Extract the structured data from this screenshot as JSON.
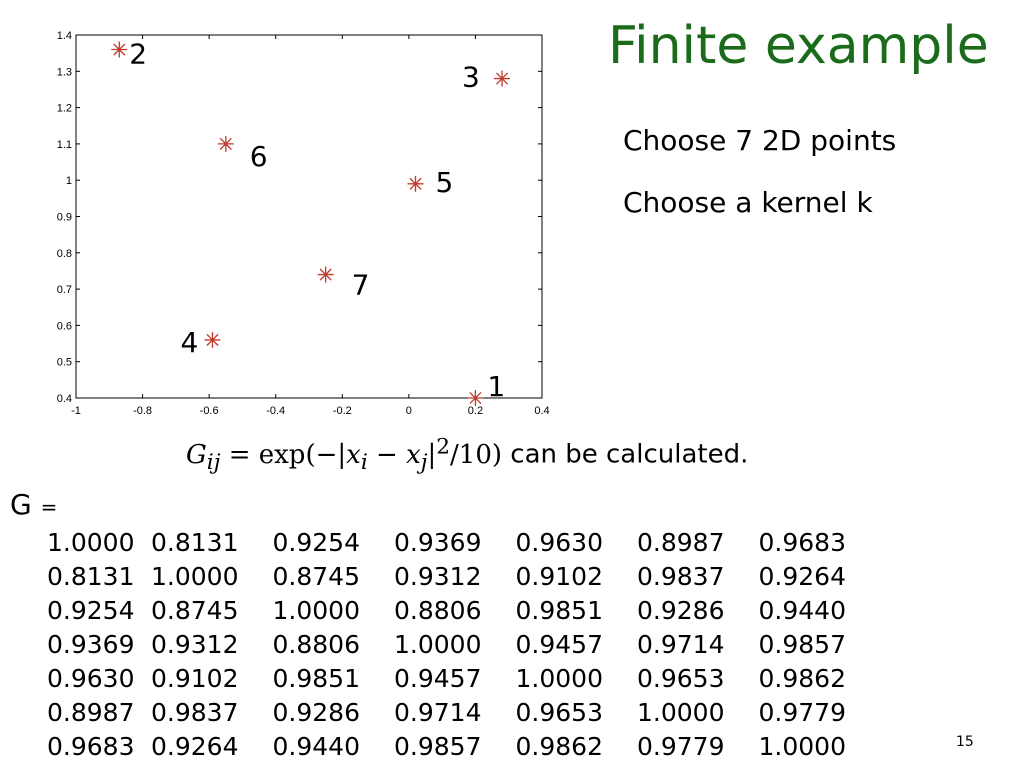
{
  "slide": {
    "title": "Finite example",
    "bullets": [
      "Choose 7 2D points",
      "Choose a kernel k"
    ],
    "formula_trailing_text": "can be calculated.",
    "matrix_label": "G",
    "matrix_equals": "=",
    "matrix": [
      [
        "1.0000",
        "0.8131",
        "0.9254",
        "0.9369",
        "0.9630",
        "0.8987",
        "0.9683"
      ],
      [
        "0.8131",
        "1.0000",
        "0.8745",
        "0.9312",
        "0.9102",
        "0.9837",
        "0.9264"
      ],
      [
        "0.9254",
        "0.8745",
        "1.0000",
        "0.8806",
        "0.9851",
        "0.9286",
        "0.9440"
      ],
      [
        "0.9369",
        "0.9312",
        "0.8806",
        "1.0000",
        "0.9457",
        "0.9714",
        "0.9857"
      ],
      [
        "0.9630",
        "0.9102",
        "0.9851",
        "0.9457",
        "1.0000",
        "0.9653",
        "0.9862"
      ],
      [
        "0.8987",
        "0.9837",
        "0.9286",
        "0.9714",
        "0.9653",
        "1.0000",
        "0.9779"
      ],
      [
        "0.9683",
        "0.9264",
        "0.9440",
        "0.9857",
        "0.9862",
        "0.9779",
        "1.0000"
      ]
    ],
    "page_number": "15"
  },
  "chart_data": {
    "type": "scatter",
    "xlim": [
      -1,
      0.4
    ],
    "ylim": [
      0.4,
      1.4
    ],
    "x_ticks": [
      "-1",
      "-0.8",
      "-0.6",
      "-0.4",
      "-0.2",
      "0",
      "0.2",
      "0.4"
    ],
    "y_ticks": [
      "0.4",
      "0.5",
      "0.6",
      "0.7",
      "0.8",
      "0.9",
      "1",
      "1.1",
      "1.2",
      "1.3",
      "1.4"
    ],
    "marker": "asterisk",
    "marker_color": "#c0392b",
    "label_color": "#000000",
    "grid": false,
    "points": [
      {
        "label": "1",
        "x": 0.2,
        "y": 0.4
      },
      {
        "label": "2",
        "x": -0.87,
        "y": 1.36
      },
      {
        "label": "3",
        "x": 0.28,
        "y": 1.28
      },
      {
        "label": "4",
        "x": -0.59,
        "y": 0.56
      },
      {
        "label": "5",
        "x": 0.02,
        "y": 0.99
      },
      {
        "label": "6",
        "x": -0.55,
        "y": 1.1
      },
      {
        "label": "7",
        "x": -0.25,
        "y": 0.74
      }
    ]
  }
}
